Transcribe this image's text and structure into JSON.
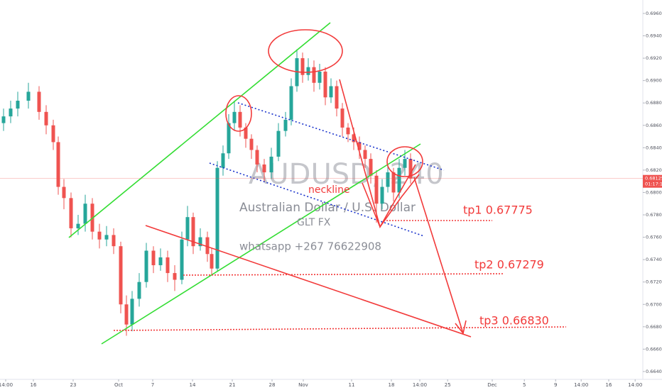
{
  "chart_data": {
    "type": "candlestick",
    "symbol": "AUDUSD, 240",
    "description": "Australian Dollar / U.S. Dollar",
    "annotations": [
      "neckline",
      "GLT FX",
      "whatsapp +267 76622908",
      "tp1 0.67775",
      "tp2 0.67279",
      "tp3 0.66830"
    ],
    "up_color": "#26a69a",
    "down_color": "#ef5350",
    "x": [
      -5.25,
      -4,
      -2.75,
      -0.875,
      1,
      2.25,
      3.5,
      4.375,
      5.375,
      6.625,
      7.875,
      9.125,
      10.375,
      11.625,
      12.875,
      14.125,
      15.375,
      16.375,
      17.375,
      18.625,
      19.875,
      21.125,
      22.375,
      23.625,
      24.875,
      26.125,
      27.125,
      28.125,
      29.375,
      30.625,
      31.375,
      32.375,
      33.375,
      34.375,
      35.375,
      36.375,
      37.375,
      38.375,
      39.375,
      40.625,
      41.875,
      43.125,
      44.375,
      45.375,
      46.375,
      47.375,
      48.375,
      49.375,
      50.375,
      51.375,
      52.375,
      53.375,
      54.375,
      55.375,
      56.375,
      57.375,
      58.375,
      59.375,
      60.375,
      61.375,
      62.375,
      63.375,
      64.375,
      65.375,
      66.375
    ],
    "open": [
      0.6862,
      0.6868,
      0.6875,
      0.6882,
      0.689,
      0.6872,
      0.686,
      0.6845,
      0.6805,
      0.6795,
      0.6768,
      0.6772,
      0.679,
      0.6765,
      0.6758,
      0.6762,
      0.6752,
      0.67,
      0.6682,
      0.6705,
      0.672,
      0.6748,
      0.6735,
      0.6742,
      0.6728,
      0.6722,
      0.6758,
      0.6778,
      0.6752,
      0.676,
      0.6745,
      0.6732,
      0.6822,
      0.6835,
      0.6862,
      0.6872,
      0.6858,
      0.6848,
      0.6838,
      0.6825,
      0.6818,
      0.6832,
      0.6855,
      0.6865,
      0.6895,
      0.692,
      0.6905,
      0.6912,
      0.6898,
      0.6908,
      0.6885,
      0.6895,
      0.6875,
      0.6858,
      0.6852,
      0.6845,
      0.6838,
      0.683,
      0.6815,
      0.679,
      0.6805,
      0.6818,
      0.68,
      0.6822,
      0.683
    ],
    "high": [
      0.6875,
      0.6882,
      0.689,
      0.6898,
      0.6895,
      0.6878,
      0.6865,
      0.685,
      0.6812,
      0.68,
      0.678,
      0.6798,
      0.6795,
      0.6772,
      0.677,
      0.6768,
      0.6756,
      0.6708,
      0.6712,
      0.6728,
      0.6755,
      0.6752,
      0.675,
      0.6748,
      0.6735,
      0.6765,
      0.6788,
      0.6782,
      0.6768,
      0.6765,
      0.675,
      0.6828,
      0.6842,
      0.687,
      0.6882,
      0.6878,
      0.6862,
      0.6852,
      0.6842,
      0.683,
      0.684,
      0.6862,
      0.6872,
      0.6902,
      0.6928,
      0.6925,
      0.692,
      0.6918,
      0.6915,
      0.6912,
      0.6902,
      0.69,
      0.688,
      0.6862,
      0.6858,
      0.685,
      0.6842,
      0.6835,
      0.682,
      0.6812,
      0.6825,
      0.6822,
      0.683,
      0.6838,
      0.6835
    ],
    "low": [
      0.6855,
      0.6862,
      0.6868,
      0.6875,
      0.6865,
      0.6852,
      0.6838,
      0.6798,
      0.6785,
      0.676,
      0.6762,
      0.6765,
      0.6758,
      0.675,
      0.6752,
      0.6745,
      0.6692,
      0.6672,
      0.6676,
      0.6698,
      0.6715,
      0.6728,
      0.673,
      0.672,
      0.6712,
      0.6718,
      0.6752,
      0.6745,
      0.6748,
      0.6738,
      0.6726,
      0.673,
      0.6815,
      0.683,
      0.6855,
      0.685,
      0.684,
      0.683,
      0.6818,
      0.681,
      0.6812,
      0.6828,
      0.685,
      0.686,
      0.689,
      0.6898,
      0.69,
      0.689,
      0.6892,
      0.6878,
      0.688,
      0.6868,
      0.685,
      0.6845,
      0.6838,
      0.683,
      0.6822,
      0.6808,
      0.6773,
      0.6785,
      0.68,
      0.6792,
      0.6795,
      0.6815,
      0.6808
    ],
    "close": [
      0.6868,
      0.6875,
      0.6882,
      0.689,
      0.6872,
      0.686,
      0.6845,
      0.6805,
      0.6795,
      0.6768,
      0.6772,
      0.679,
      0.6765,
      0.6758,
      0.6762,
      0.6752,
      0.67,
      0.6682,
      0.6705,
      0.672,
      0.6748,
      0.6735,
      0.6742,
      0.6728,
      0.6722,
      0.6758,
      0.6778,
      0.6752,
      0.676,
      0.6745,
      0.6732,
      0.6822,
      0.6835,
      0.6862,
      0.6872,
      0.6858,
      0.6848,
      0.6838,
      0.6825,
      0.6818,
      0.6832,
      0.6855,
      0.6865,
      0.6895,
      0.692,
      0.6905,
      0.6912,
      0.6898,
      0.6908,
      0.6885,
      0.6895,
      0.6875,
      0.6858,
      0.6852,
      0.6845,
      0.6838,
      0.683,
      0.6815,
      0.679,
      0.6805,
      0.6818,
      0.68,
      0.6822,
      0.683,
      0.68125
    ],
    "last_price": {
      "value": 0.68125,
      "label": "0.68125"
    },
    "countdown": "01:17:12",
    "xlim": [
      -5.875,
      107.25
    ],
    "xticks": [
      {
        "value": -4.875,
        "label": "14:00"
      },
      {
        "value": 0,
        "label": "16"
      },
      {
        "value": 7,
        "label": "23"
      },
      {
        "value": 15,
        "label": "Oct"
      },
      {
        "value": 21,
        "label": "7"
      },
      {
        "value": 28,
        "label": "14"
      },
      {
        "value": 35,
        "label": "21"
      },
      {
        "value": 42,
        "label": "28"
      },
      {
        "value": 47.5,
        "label": "Nov"
      },
      {
        "value": 56,
        "label": "11"
      },
      {
        "value": 63,
        "label": "18"
      },
      {
        "value": 68,
        "label": "14:00"
      },
      {
        "value": 72.9,
        "label": "25"
      },
      {
        "value": 80.75,
        "label": "Dec"
      },
      {
        "value": 86.4,
        "label": "5"
      },
      {
        "value": 91.9,
        "label": "9"
      },
      {
        "value": 96.4,
        "label": "14:00"
      },
      {
        "value": 101.25,
        "label": "16"
      },
      {
        "value": 105.9,
        "label": "14:00"
      }
    ],
    "ylim": [
      0.6633,
      0.6972
    ],
    "yticks": [
      {
        "value": 0.664,
        "label": "0.66400"
      },
      {
        "value": 0.666,
        "label": "0.66600"
      },
      {
        "value": 0.668,
        "label": "0.66800"
      },
      {
        "value": 0.67,
        "label": "0.67000"
      },
      {
        "value": 0.672,
        "label": "0.67200"
      },
      {
        "value": 0.674,
        "label": "0.67400"
      },
      {
        "value": 0.676,
        "label": "0.67600"
      },
      {
        "value": 0.678,
        "label": "0.67800"
      },
      {
        "value": 0.68,
        "label": "0.68000"
      },
      {
        "value": 0.682,
        "label": "0.68200"
      },
      {
        "value": 0.684,
        "label": "0.68400"
      },
      {
        "value": 0.686,
        "label": "0.68600"
      },
      {
        "value": 0.688,
        "label": "0.68800"
      },
      {
        "value": 0.69,
        "label": "0.69000"
      },
      {
        "value": 0.692,
        "label": "0.69200"
      },
      {
        "value": 0.694,
        "label": "0.69400"
      },
      {
        "value": 0.696,
        "label": "0.69600"
      }
    ]
  }
}
